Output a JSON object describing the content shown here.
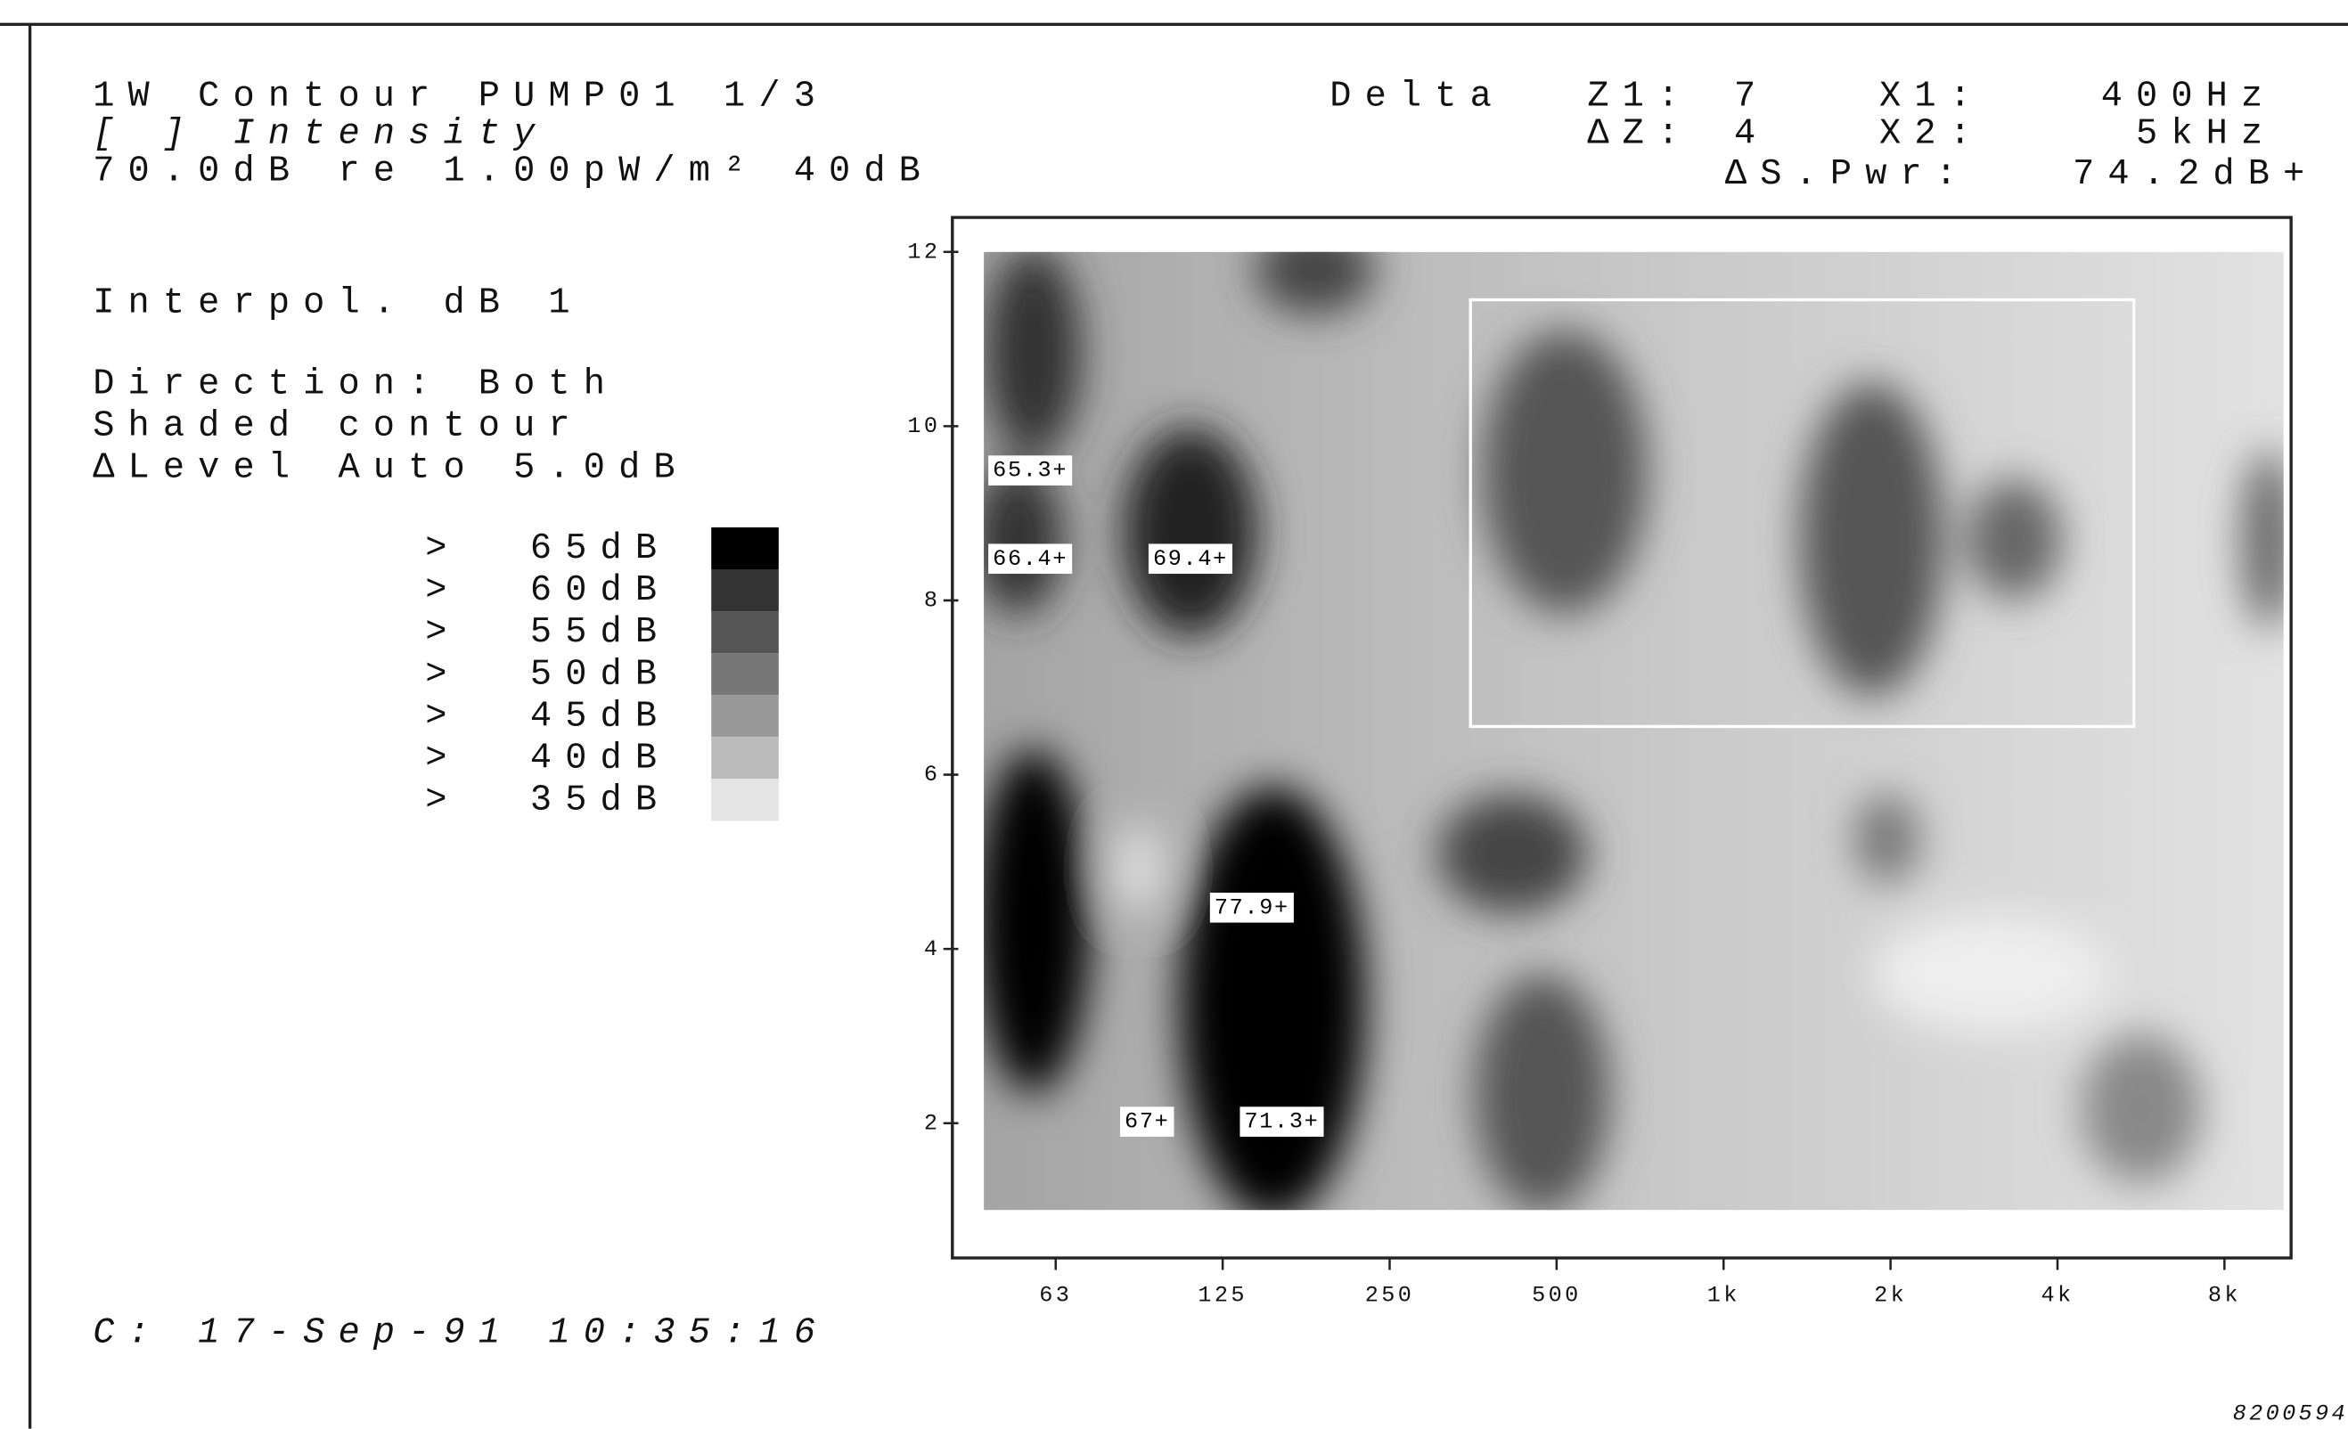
{
  "header": {
    "title": "1W Contour PUMP01 1/3",
    "mode": "[ ] Intensity",
    "reference": "70.0dB re 1.00pW/m² 40dB"
  },
  "cursor": {
    "label": "Delta",
    "z1_label": "Z1:",
    "z1": "7",
    "dz_label": "ΔZ:",
    "dz": "4",
    "x1_label": "X1:",
    "x1": "400Hz",
    "x2_label": "X2:",
    "x2": "5kHz",
    "pwr_label": "ΔS.Pwr:",
    "pwr": "74.2dB+"
  },
  "settings": [
    "Interpol. dB 1",
    "Direction: Both",
    "Shaded contour",
    "ΔLevel Auto 5.0dB"
  ],
  "legend": [
    {
      "symbol": ">",
      "label": "65dB"
    },
    {
      "symbol": ">",
      "label": "60dB"
    },
    {
      "symbol": ">",
      "label": "55dB"
    },
    {
      "symbol": ">",
      "label": "50dB"
    },
    {
      "symbol": ">",
      "label": "45dB"
    },
    {
      "symbol": ">",
      "label": "40dB"
    },
    {
      "symbol": ">",
      "label": "35dB"
    }
  ],
  "y_ticks": [
    "12",
    "10",
    "8",
    "6",
    "4",
    "2"
  ],
  "x_ticks": [
    "63",
    "125",
    "250",
    "500",
    "1k",
    "2k",
    "4k",
    "8k"
  ],
  "spot_labels": [
    "65.3+",
    "66.4+",
    "69.4+",
    "77.9+",
    "67+",
    "71.3+"
  ],
  "timestamp": "C: 17-Sep-91 10:35:16",
  "figure_id": "8200594"
}
